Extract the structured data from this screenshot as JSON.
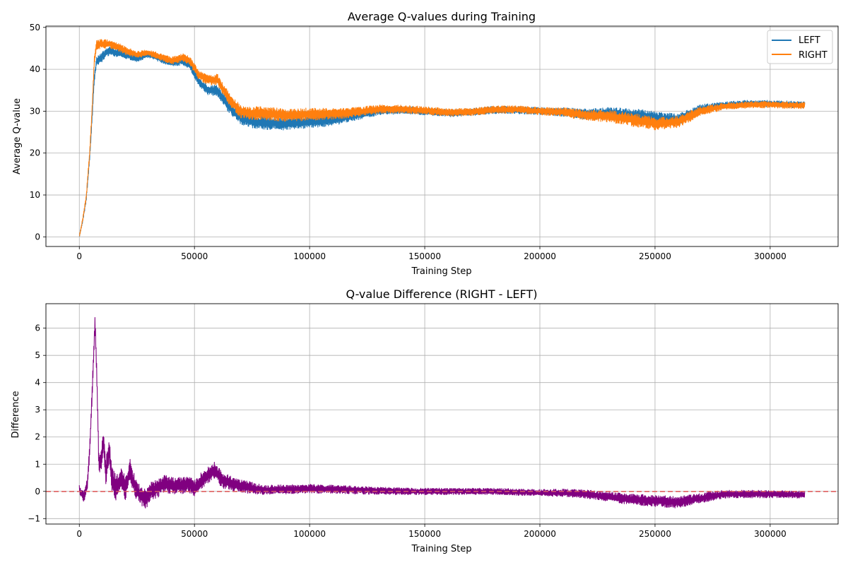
{
  "chart_data": [
    {
      "type": "line",
      "title": "Average Q-values during Training",
      "xlabel": "Training Step",
      "ylabel": "Average Q-value",
      "xlim": [
        -14500,
        329500
      ],
      "ylim": [
        -2.3,
        50.3
      ],
      "xticks": [
        0,
        50000,
        100000,
        150000,
        200000,
        250000,
        300000
      ],
      "yticks": [
        0,
        10,
        20,
        30,
        40,
        50
      ],
      "grid": true,
      "legend_position": "top-right",
      "band": "noisy",
      "series": [
        {
          "name": "LEFT",
          "color": "#1f77b4",
          "points": [
            [
              0,
              0
            ],
            [
              1500,
              4
            ],
            [
              3000,
              9
            ],
            [
              4500,
              19
            ],
            [
              5500,
              28
            ],
            [
              6500,
              38
            ],
            [
              7500,
              42
            ],
            [
              10000,
              43
            ],
            [
              13000,
              44.5
            ],
            [
              16000,
              44
            ],
            [
              20000,
              43.5
            ],
            [
              25000,
              42.5
            ],
            [
              30000,
              43.5
            ],
            [
              35000,
              42.5
            ],
            [
              40000,
              41.5
            ],
            [
              45000,
              42
            ],
            [
              48000,
              41
            ],
            [
              52000,
              37
            ],
            [
              56000,
              35
            ],
            [
              60000,
              35
            ],
            [
              65000,
              31
            ],
            [
              70000,
              28.5
            ],
            [
              75000,
              27.5
            ],
            [
              80000,
              27.2
            ],
            [
              90000,
              27
            ],
            [
              100000,
              27.5
            ],
            [
              110000,
              27.8
            ],
            [
              120000,
              29
            ],
            [
              130000,
              30
            ],
            [
              140000,
              30.3
            ],
            [
              150000,
              30
            ],
            [
              160000,
              29.5
            ],
            [
              170000,
              29.8
            ],
            [
              180000,
              30.3
            ],
            [
              190000,
              30.3
            ],
            [
              200000,
              30
            ],
            [
              210000,
              29.8
            ],
            [
              220000,
              29.3
            ],
            [
              230000,
              29.5
            ],
            [
              240000,
              29
            ],
            [
              250000,
              28.5
            ],
            [
              260000,
              28
            ],
            [
              270000,
              30.5
            ],
            [
              280000,
              31.5
            ],
            [
              290000,
              31.8
            ],
            [
              300000,
              31.8
            ],
            [
              310000,
              31.6
            ],
            [
              315000,
              31.5
            ]
          ],
          "noise": [
            [
              0,
              0.3
            ],
            [
              8000,
              1.2
            ],
            [
              30000,
              0.7
            ],
            [
              48000,
              1.0
            ],
            [
              70000,
              1.6
            ],
            [
              100000,
              1.5
            ],
            [
              130000,
              1.0
            ],
            [
              160000,
              0.9
            ],
            [
              200000,
              0.9
            ],
            [
              240000,
              1.6
            ],
            [
              260000,
              1.4
            ],
            [
              280000,
              0.8
            ],
            [
              315000,
              0.8
            ]
          ]
        },
        {
          "name": "RIGHT",
          "color": "#ff7f0e",
          "points": [
            [
              0,
              0
            ],
            [
              1500,
              4.2
            ],
            [
              3000,
              9.5
            ],
            [
              4500,
              20
            ],
            [
              5500,
              30
            ],
            [
              6500,
              42
            ],
            [
              7500,
              46
            ],
            [
              10000,
              46
            ],
            [
              13000,
              46
            ],
            [
              16000,
              45.5
            ],
            [
              20000,
              44.5
            ],
            [
              25000,
              43.5
            ],
            [
              30000,
              44
            ],
            [
              35000,
              43
            ],
            [
              40000,
              42
            ],
            [
              45000,
              42.8
            ],
            [
              48000,
              42
            ],
            [
              52000,
              38.5
            ],
            [
              56000,
              37.5
            ],
            [
              60000,
              37.5
            ],
            [
              65000,
              33
            ],
            [
              70000,
              30
            ],
            [
              75000,
              29.5
            ],
            [
              80000,
              29.5
            ],
            [
              90000,
              29
            ],
            [
              100000,
              29.3
            ],
            [
              110000,
              29.3
            ],
            [
              120000,
              29.8
            ],
            [
              130000,
              30.5
            ],
            [
              140000,
              30.5
            ],
            [
              150000,
              30.2
            ],
            [
              160000,
              29.7
            ],
            [
              170000,
              29.8
            ],
            [
              180000,
              30.4
            ],
            [
              190000,
              30.4
            ],
            [
              200000,
              30
            ],
            [
              210000,
              29.8
            ],
            [
              220000,
              29
            ],
            [
              230000,
              28.8
            ],
            [
              240000,
              28
            ],
            [
              250000,
              27
            ],
            [
              260000,
              27.5
            ],
            [
              270000,
              30
            ],
            [
              280000,
              31.2
            ],
            [
              290000,
              31.5
            ],
            [
              300000,
              31.6
            ],
            [
              310000,
              31.4
            ],
            [
              315000,
              31.4
            ]
          ],
          "noise": [
            [
              0,
              0.3
            ],
            [
              8000,
              1.2
            ],
            [
              30000,
              0.7
            ],
            [
              48000,
              1.0
            ],
            [
              70000,
              1.6
            ],
            [
              100000,
              1.5
            ],
            [
              130000,
              1.0
            ],
            [
              160000,
              0.9
            ],
            [
              200000,
              0.9
            ],
            [
              240000,
              1.6
            ],
            [
              260000,
              1.4
            ],
            [
              280000,
              0.8
            ],
            [
              315000,
              0.8
            ]
          ]
        }
      ]
    },
    {
      "type": "line",
      "title": "Q-value Difference (RIGHT - LEFT)",
      "xlabel": "Training Step",
      "ylabel": "Difference",
      "xlim": [
        -14500,
        329500
      ],
      "ylim": [
        -1.2,
        6.9
      ],
      "xticks": [
        0,
        50000,
        100000,
        150000,
        200000,
        250000,
        300000
      ],
      "yticks": [
        -1,
        0,
        1,
        2,
        3,
        4,
        5,
        6
      ],
      "grid": true,
      "band": "noisy",
      "reference_line": {
        "y": 0,
        "color": "#e06666",
        "style": "dashed"
      },
      "series": [
        {
          "name": "",
          "color": "#800080",
          "points": [
            [
              0,
              0.1
            ],
            [
              1000,
              -0.1
            ],
            [
              2000,
              -0.2
            ],
            [
              3500,
              0.3
            ],
            [
              4500,
              1.5
            ],
            [
              5500,
              3.5
            ],
            [
              6800,
              6.3
            ],
            [
              7500,
              4.5
            ],
            [
              8500,
              1.0
            ],
            [
              9500,
              1.2
            ],
            [
              10500,
              1.8
            ],
            [
              11500,
              0.7
            ],
            [
              13000,
              1.5
            ],
            [
              14000,
              0.5
            ],
            [
              16000,
              0.1
            ],
            [
              18000,
              0.5
            ],
            [
              20000,
              0.1
            ],
            [
              22000,
              0.8
            ],
            [
              24000,
              0.2
            ],
            [
              26000,
              -0.1
            ],
            [
              29000,
              -0.3
            ],
            [
              31000,
              0.0
            ],
            [
              34000,
              0.1
            ],
            [
              37000,
              0.3
            ],
            [
              40000,
              0.2
            ],
            [
              44000,
              0.2
            ],
            [
              47000,
              0.3
            ],
            [
              50000,
              0.1
            ],
            [
              53000,
              0.4
            ],
            [
              56000,
              0.6
            ],
            [
              59000,
              0.8
            ],
            [
              62000,
              0.4
            ],
            [
              66000,
              0.3
            ],
            [
              70000,
              0.2
            ],
            [
              80000,
              0.05
            ],
            [
              100000,
              0.1
            ],
            [
              120000,
              0.05
            ],
            [
              140000,
              0.0
            ],
            [
              160000,
              0.0
            ],
            [
              180000,
              0.0
            ],
            [
              200000,
              -0.05
            ],
            [
              210000,
              -0.05
            ],
            [
              220000,
              -0.1
            ],
            [
              230000,
              -0.2
            ],
            [
              240000,
              -0.3
            ],
            [
              250000,
              -0.35
            ],
            [
              260000,
              -0.4
            ],
            [
              270000,
              -0.25
            ],
            [
              280000,
              -0.1
            ],
            [
              300000,
              -0.1
            ],
            [
              315000,
              -0.12
            ]
          ],
          "noise": [
            [
              0,
              0.15
            ],
            [
              6000,
              0.3
            ],
            [
              12000,
              0.5
            ],
            [
              28000,
              0.35
            ],
            [
              50000,
              0.3
            ],
            [
              62000,
              0.3
            ],
            [
              80000,
              0.18
            ],
            [
              150000,
              0.12
            ],
            [
              200000,
              0.12
            ],
            [
              240000,
              0.2
            ],
            [
              260000,
              0.22
            ],
            [
              280000,
              0.15
            ],
            [
              315000,
              0.13
            ]
          ]
        }
      ]
    }
  ]
}
